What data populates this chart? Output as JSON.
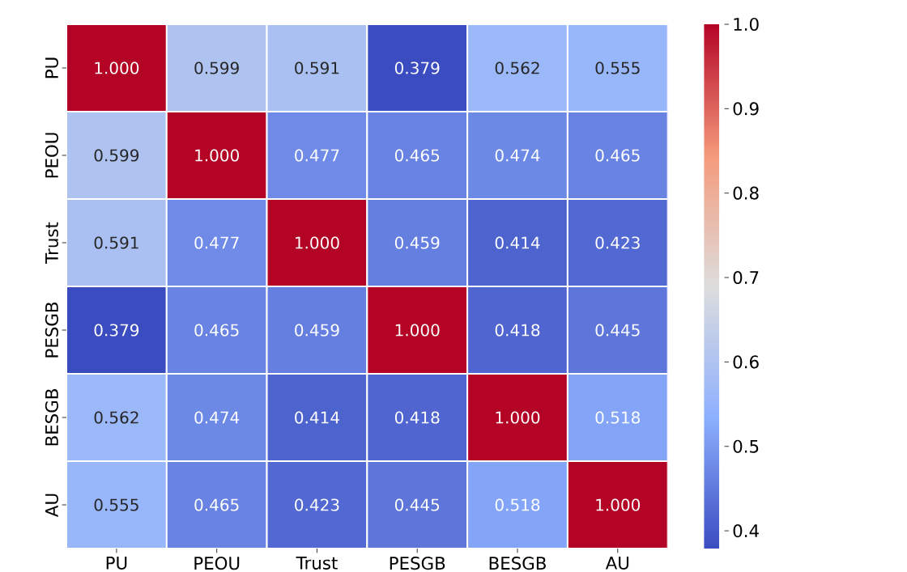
{
  "chart_data": {
    "type": "heatmap",
    "categories": [
      "PU",
      "PEOU",
      "Trust",
      "PESGB",
      "BESGB",
      "AU"
    ],
    "y_categories": [
      "PU",
      "PEOU",
      "Trust",
      "PESGB",
      "BESGB",
      "AU"
    ],
    "cells": [
      [
        1.0,
        0.599,
        0.591,
        0.379,
        0.562,
        0.555
      ],
      [
        0.599,
        1.0,
        0.477,
        0.465,
        0.474,
        0.465
      ],
      [
        0.591,
        0.477,
        1.0,
        0.459,
        0.414,
        0.423
      ],
      [
        0.379,
        0.465,
        0.459,
        1.0,
        0.418,
        0.445
      ],
      [
        0.562,
        0.474,
        0.414,
        0.418,
        1.0,
        0.518
      ],
      [
        0.555,
        0.465,
        0.423,
        0.445,
        0.518,
        1.0
      ]
    ],
    "cell_labels": [
      [
        "1.000",
        "0.599",
        "0.591",
        "0.379",
        "0.562",
        "0.555"
      ],
      [
        "0.599",
        "1.000",
        "0.477",
        "0.465",
        "0.474",
        "0.465"
      ],
      [
        "0.591",
        "0.477",
        "1.000",
        "0.459",
        "0.414",
        "0.423"
      ],
      [
        "0.379",
        "0.465",
        "0.459",
        "1.000",
        "0.418",
        "0.445"
      ],
      [
        "0.562",
        "0.474",
        "0.414",
        "0.418",
        "1.000",
        "0.518"
      ],
      [
        "0.555",
        "0.465",
        "0.423",
        "0.445",
        "0.518",
        "1.000"
      ]
    ],
    "clim": [
      0.379,
      1.0
    ],
    "cticks": [
      0.4,
      0.5,
      0.6,
      0.7,
      0.8,
      0.9,
      {
        "value": 1.0,
        "label": "1.0"
      }
    ]
  }
}
